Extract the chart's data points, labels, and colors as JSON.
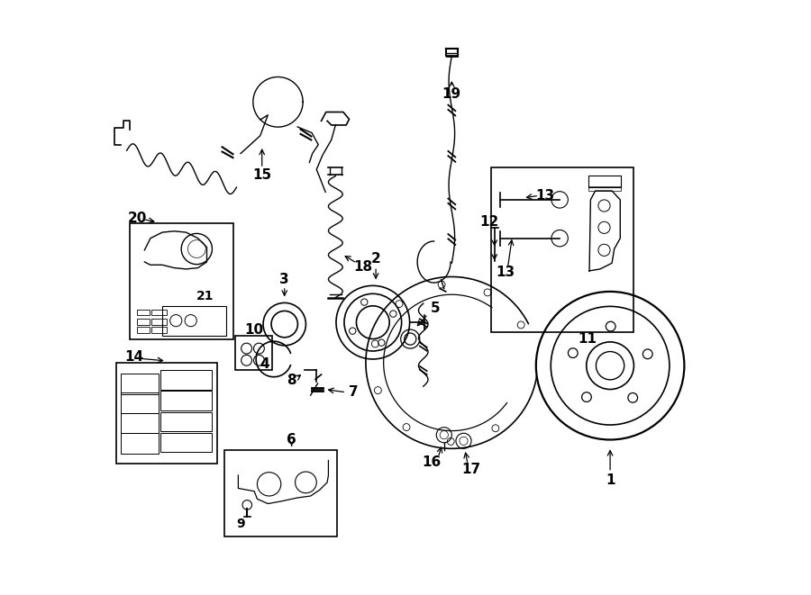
{
  "bg_color": "#ffffff",
  "line_color": "#000000",
  "fig_width": 9.0,
  "fig_height": 6.61,
  "label_fontsize": 11
}
